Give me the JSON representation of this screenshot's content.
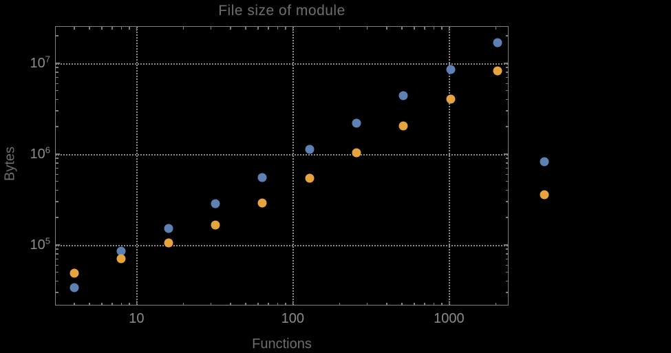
{
  "chart_data": {
    "type": "scatter",
    "title": "File size of module",
    "xlabel": "Functions",
    "ylabel": "Bytes",
    "x_scale": "log",
    "y_scale": "log",
    "xlim": [
      3.04,
      2360
    ],
    "ylim": [
      22300,
      25200000
    ],
    "grid": "dotted lines at decade ticks, frame on all four sides",
    "legend": "none",
    "x_ticks": [
      {
        "value": 10,
        "label": "10"
      },
      {
        "value": 100,
        "label": "100"
      },
      {
        "value": 1000,
        "label": "1000"
      }
    ],
    "y_ticks": [
      {
        "value": 100000,
        "base": "10",
        "exp": "5"
      },
      {
        "value": 1000000,
        "base": "10",
        "exp": "6"
      },
      {
        "value": 10000000,
        "base": "10",
        "exp": "7"
      }
    ],
    "x": [
      4,
      8,
      16,
      32,
      64,
      128,
      256,
      512,
      1024,
      2048,
      4096
    ],
    "series": [
      {
        "name": "blue",
        "color": "#5e81b5",
        "values": [
          34000,
          85000,
          151000,
          285000,
          555000,
          1120000,
          2200000,
          4400000,
          8600000,
          17000000,
          830000
        ]
      },
      {
        "name": "orange",
        "color": "#e7a33e",
        "values": [
          49000,
          70000,
          106000,
          167000,
          290000,
          545000,
          1040000,
          2040000,
          4050000,
          8200000,
          360000
        ]
      }
    ]
  },
  "colors": {
    "background": "#000000",
    "frame": "#7f7f7f",
    "grid": "#8c8c8c",
    "tick_label": "#8c8c8c",
    "title": "#6e6e6e",
    "axis_label": "#6e6e6e",
    "series_blue": "#5e81b5",
    "series_orange": "#e7a33e"
  }
}
